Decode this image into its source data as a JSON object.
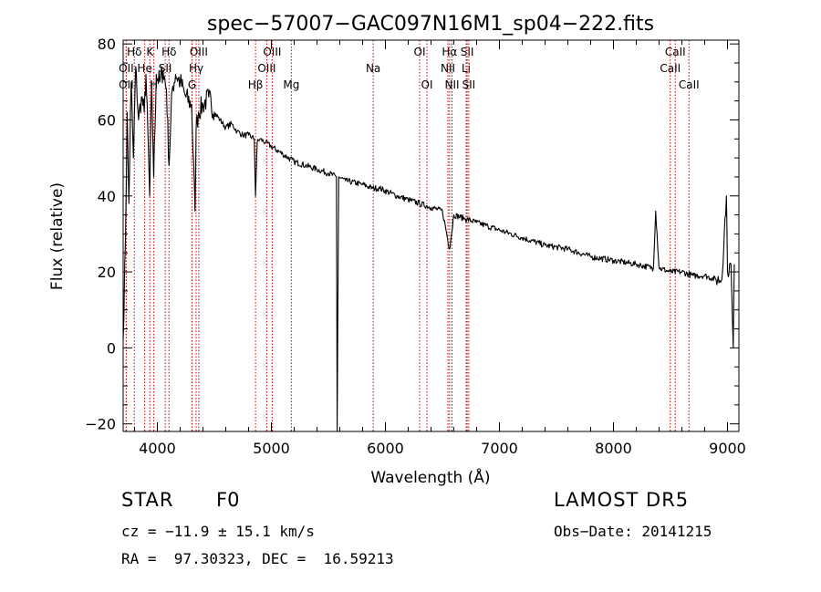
{
  "chart_data": {
    "type": "line",
    "title": "spec−57007−GAC097N16M1_sp04−222.fits",
    "xlabel": "Wavelength (Å)",
    "ylabel": "Flux (relative)",
    "xlim": [
      3700,
      9100
    ],
    "ylim": [
      -22,
      81
    ],
    "xticks": [
      4000,
      5000,
      6000,
      7000,
      8000,
      9000
    ],
    "yticks": [
      -20,
      0,
      20,
      40,
      60,
      80
    ],
    "ytick_labels": [
      "−20",
      "0",
      "20",
      "40",
      "60",
      "80"
    ],
    "grid": false,
    "legend": "none",
    "line_color": "#000000",
    "marker_color": "#cc0000",
    "series": [
      {
        "x": [
          3700,
          3720,
          3735,
          3750,
          3770,
          3790,
          3810,
          3835,
          3860,
          3885,
          3900,
          3933,
          3950,
          3968,
          3990,
          4020,
          4050,
          4080,
          4102,
          4130,
          4160,
          4200,
          4250,
          4300,
          4330,
          4340,
          4360,
          4400,
          4450,
          4500,
          4550,
          4600,
          4650,
          4700,
          4750,
          4800,
          4850,
          4861,
          4875,
          4900,
          4950,
          5000,
          5100,
          5200,
          5300,
          5400,
          5500,
          5570,
          5577,
          5590,
          5650,
          5800,
          5890,
          5950,
          6100,
          6200,
          6300,
          6400,
          6500,
          6563,
          6600,
          6700,
          6800,
          6900,
          7000,
          7200,
          7400,
          7600,
          7800,
          8000,
          8200,
          8350,
          8370,
          8400,
          8500,
          8600,
          8700,
          8800,
          8900,
          8950,
          8990,
          9000,
          9030,
          9050,
          9060
        ],
        "y": [
          2,
          28,
          62,
          38,
          70,
          50,
          74,
          60,
          66,
          62,
          72,
          40,
          70,
          45,
          72,
          70,
          73,
          68,
          48,
          68,
          72,
          70,
          66,
          64,
          36,
          58,
          62,
          64,
          66,
          62,
          60,
          58,
          59,
          57,
          56,
          56,
          55,
          40,
          54,
          55,
          54,
          53,
          51,
          49,
          48,
          47,
          46,
          45,
          -22,
          45,
          44,
          43,
          42,
          42,
          40,
          39,
          38,
          37,
          36,
          26,
          35,
          34,
          33,
          32,
          31,
          29,
          27,
          26,
          24,
          23,
          22,
          21,
          36,
          21,
          20,
          20,
          19,
          19,
          18,
          18,
          40,
          20,
          22,
          0,
          22
        ]
      }
    ],
    "line_markers": [
      {
        "label": "Hδ",
        "x": 3798,
        "row": 0
      },
      {
        "label": "K",
        "x": 3934,
        "row": 0
      },
      {
        "label": "Hδ",
        "x": 4102,
        "row": 0
      },
      {
        "label": "OIII",
        "x": 4363,
        "row": 0
      },
      {
        "label": "OIII",
        "x": 5007,
        "row": 0
      },
      {
        "label": "OI",
        "x": 6300,
        "row": 0
      },
      {
        "label": "Hα",
        "x": 6563,
        "row": 0
      },
      {
        "label": "SII",
        "x": 6717,
        "row": 0
      },
      {
        "label": "CaII",
        "x": 8542,
        "row": 0
      },
      {
        "label": "OII",
        "x": 3727,
        "row": 1
      },
      {
        "label": "He",
        "x": 3889,
        "row": 1
      },
      {
        "label": "SII",
        "x": 4069,
        "row": 1
      },
      {
        "label": "Hγ",
        "x": 4340,
        "row": 1
      },
      {
        "label": "OIII",
        "x": 4959,
        "row": 1
      },
      {
        "label": "Na",
        "x": 5893,
        "row": 1
      },
      {
        "label": "NII",
        "x": 6548,
        "row": 1
      },
      {
        "label": "Li",
        "x": 6708,
        "row": 1
      },
      {
        "label": "CaII",
        "x": 8498,
        "row": 1
      },
      {
        "label": "OII",
        "x": 3727,
        "row": 2
      },
      {
        "label": "H",
        "x": 3969,
        "row": 2
      },
      {
        "label": "G",
        "x": 4304,
        "row": 2
      },
      {
        "label": "Hβ",
        "x": 4861,
        "row": 2
      },
      {
        "label": "Mg",
        "x": 5175,
        "row": 2
      },
      {
        "label": "OI",
        "x": 6364,
        "row": 2
      },
      {
        "label": "NII",
        "x": 6584,
        "row": 2
      },
      {
        "label": "SII",
        "x": 6731,
        "row": 2
      },
      {
        "label": "CaII",
        "x": 8662,
        "row": 2
      }
    ]
  },
  "info": {
    "object_class": "STAR",
    "object_subclass": "F0",
    "survey": "LAMOST DR5",
    "cz_text": "cz = −11.9 ± 15.1 km/s",
    "obs_date_text": "Obs−Date: 20141215",
    "radec_text": "RA =  97.30323, DEC =  16.59213"
  }
}
